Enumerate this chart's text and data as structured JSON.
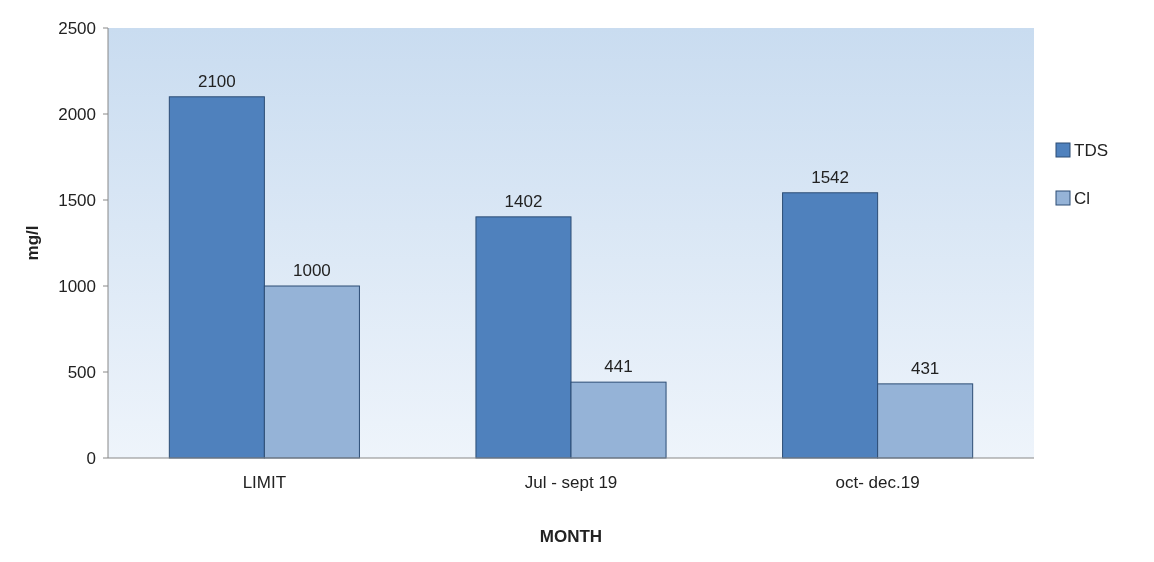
{
  "chart_data": {
    "type": "bar",
    "xlabel": "MONTH",
    "ylabel": "mg/l",
    "categories": [
      "LIMIT",
      "Jul - sept 19",
      "oct- dec.19"
    ],
    "series": [
      {
        "name": "TDS",
        "color": "#4f81bd",
        "values": [
          2100,
          1402,
          1542
        ]
      },
      {
        "name": "Cl",
        "color": "#95b3d7",
        "values": [
          1000,
          441,
          431
        ]
      }
    ],
    "ylim": [
      0,
      2500
    ],
    "yticks": [
      0,
      500,
      1000,
      1500,
      2000,
      2500
    ],
    "data_labels": true,
    "legend": "right",
    "grid": false
  }
}
